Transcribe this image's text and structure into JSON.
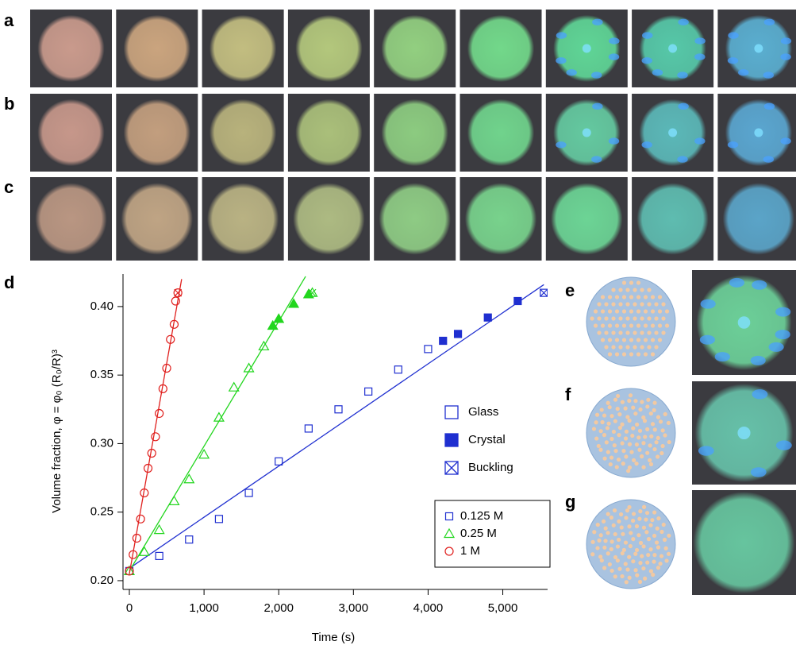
{
  "panels": [
    "a",
    "b",
    "c",
    "d",
    "e",
    "f",
    "g"
  ],
  "chart_data": {
    "type": "scatter",
    "xlabel": "Time (s)",
    "ylabel": "Volume fraction, φ = φ₀ (R₀/R)³",
    "xlim": [
      -85,
      5600
    ],
    "ylim": [
      0.1936,
      0.4237
    ],
    "xticks": [
      0,
      {
        "value": 1000,
        "label": "1,000"
      },
      {
        "value": 2000,
        "label": "2,000"
      },
      {
        "value": 3000,
        "label": "3,000"
      },
      {
        "value": 4000,
        "label": "4,000"
      },
      {
        "value": 5000,
        "label": "5,000"
      }
    ],
    "yticks": [
      {
        "value": 0.2,
        "label": "0.20"
      },
      0.25,
      {
        "value": 0.3,
        "label": "0.30"
      },
      0.35,
      {
        "value": 0.4,
        "label": "0.40"
      }
    ],
    "marker_legend": [
      "Glass",
      "Crystal",
      "Buckling"
    ],
    "series": [
      {
        "name": "0.125 M",
        "color": "#1f2fd0",
        "marker": "square",
        "x": [
          0,
          400,
          800,
          1200,
          1600,
          2000,
          2400,
          2800,
          3200,
          3600,
          4000,
          4200,
          4400,
          4800,
          5200,
          5550
        ],
        "values": [
          0.207,
          0.218,
          0.23,
          0.245,
          0.264,
          0.287,
          0.311,
          0.325,
          0.338,
          0.354,
          0.369,
          0.375,
          0.38,
          0.392,
          0.404,
          0.41
        ],
        "states": [
          "Glass",
          "Glass",
          "Glass",
          "Glass",
          "Glass",
          "Glass",
          "Glass",
          "Glass",
          "Glass",
          "Glass",
          "Glass",
          "Crystal",
          "Crystal",
          "Crystal",
          "Crystal",
          "Buckling"
        ],
        "fit_x": [
          0,
          5550
        ],
        "fit_y": [
          0.209,
          0.416
        ]
      },
      {
        "name": "0.25 M",
        "color": "#22d61e",
        "marker": "triangle",
        "x": [
          0,
          200,
          400,
          600,
          800,
          1000,
          1200,
          1400,
          1600,
          1800,
          1920,
          2000,
          2200,
          2400,
          2450
        ],
        "values": [
          0.207,
          0.221,
          0.237,
          0.258,
          0.274,
          0.292,
          0.319,
          0.341,
          0.355,
          0.371,
          0.386,
          0.391,
          0.402,
          0.409,
          0.41
        ],
        "states": [
          "Glass",
          "Glass",
          "Glass",
          "Glass",
          "Glass",
          "Glass",
          "Glass",
          "Glass",
          "Glass",
          "Glass",
          "Crystal",
          "Crystal",
          "Crystal",
          "Crystal",
          "Buckling"
        ],
        "fit_x": [
          0,
          2360
        ],
        "fit_y": [
          0.207,
          0.422
        ]
      },
      {
        "name": "1 M",
        "color": "#e0201e",
        "marker": "circle",
        "x": [
          0,
          50,
          100,
          150,
          200,
          250,
          300,
          350,
          400,
          450,
          500,
          550,
          600,
          620,
          650
        ],
        "values": [
          0.207,
          0.219,
          0.231,
          0.245,
          0.264,
          0.282,
          0.293,
          0.305,
          0.322,
          0.34,
          0.355,
          0.376,
          0.387,
          0.404,
          0.41
        ],
        "states": [
          "Glass",
          "Glass",
          "Glass",
          "Glass",
          "Glass",
          "Glass",
          "Glass",
          "Glass",
          "Glass",
          "Glass",
          "Glass",
          "Glass",
          "Glass",
          "Glass",
          "Buckling"
        ],
        "fit_x": [
          0,
          700
        ],
        "fit_y": [
          0.205,
          0.42
        ]
      }
    ]
  }
}
